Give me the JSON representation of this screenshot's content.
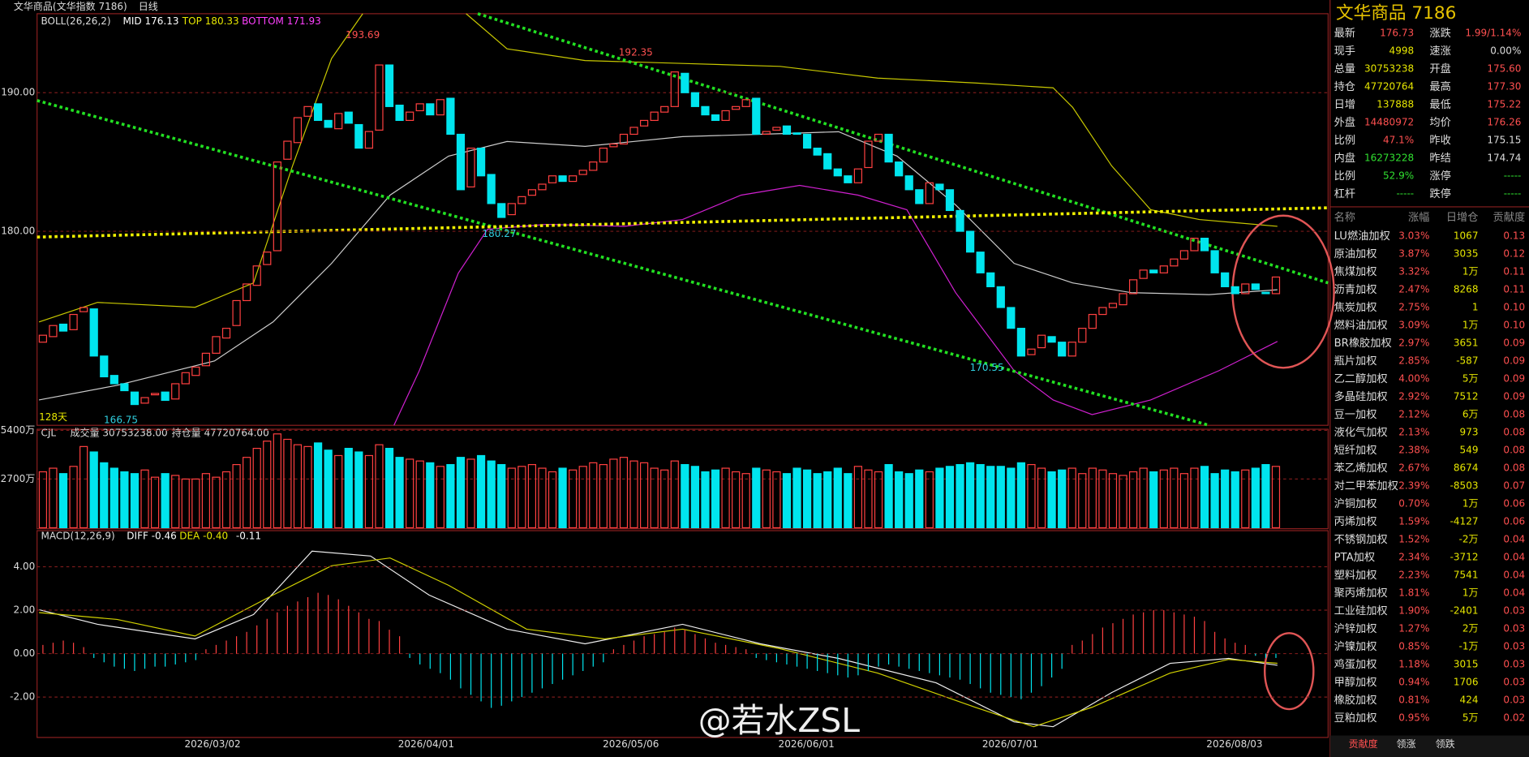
{
  "header": {
    "instrument": "文华商品(文华指数 7186)",
    "period": "日线"
  },
  "main_chart": {
    "legend": [
      "BOLL(26,26,2)",
      "MID 176.13",
      "TOP 180.33",
      "BOTTOM 171.93"
    ],
    "ylim": [
      166,
      195.7
    ],
    "yticks": [
      {
        "value": 190,
        "label": "190.00"
      },
      {
        "value": 180,
        "label": "180.00"
      }
    ],
    "annotations": [
      "193.69",
      "192.35",
      "180.27",
      "170.55",
      "166.75",
      "128天"
    ],
    "candles": [
      [
        172.0,
        172.5
      ],
      [
        172.4,
        173.2
      ],
      [
        173.3,
        172.8
      ],
      [
        172.9,
        174
      ],
      [
        174.2,
        174.5
      ],
      [
        174.4,
        171
      ],
      [
        171,
        169.5
      ],
      [
        169.6,
        169
      ],
      [
        169,
        168.5
      ],
      [
        168.4,
        167.5
      ],
      [
        167.6,
        168
      ],
      [
        168.2,
        168.3
      ],
      [
        168.4,
        167.8
      ],
      [
        167.9,
        169
      ],
      [
        169,
        169.8
      ],
      [
        169.6,
        170.2
      ],
      [
        170.3,
        171.2
      ],
      [
        171.2,
        172.4
      ],
      [
        172.3,
        173
      ],
      [
        173.2,
        175
      ],
      [
        175,
        176.2
      ],
      [
        176.1,
        177.5
      ],
      [
        177.6,
        178.5
      ],
      [
        178.6,
        185
      ],
      [
        185.2,
        186.5
      ],
      [
        186.4,
        188.2
      ],
      [
        188.3,
        189
      ],
      [
        189.2,
        188
      ],
      [
        188,
        187.5
      ],
      [
        187.4,
        188.5
      ],
      [
        188.6,
        187.8
      ],
      [
        187.7,
        186
      ],
      [
        186,
        187.2
      ],
      [
        187.3,
        192
      ],
      [
        192,
        189
      ],
      [
        189.1,
        188
      ],
      [
        188,
        188.6
      ],
      [
        188.7,
        189.2
      ],
      [
        189.2,
        188.4
      ],
      [
        188.4,
        189.5
      ],
      [
        189.6,
        187
      ],
      [
        187,
        183
      ],
      [
        183.2,
        186
      ],
      [
        186,
        184
      ],
      [
        184.1,
        182
      ],
      [
        182,
        181
      ],
      [
        181.2,
        182
      ],
      [
        182,
        182.5
      ],
      [
        182.6,
        183
      ],
      [
        183,
        183.4
      ],
      [
        183.5,
        184
      ],
      [
        184,
        183.6
      ],
      [
        183.6,
        184
      ],
      [
        184.1,
        184.4
      ],
      [
        184.4,
        185
      ],
      [
        185,
        186
      ],
      [
        186.1,
        186.3
      ],
      [
        186.3,
        187
      ],
      [
        187,
        187.5
      ],
      [
        187.6,
        188
      ],
      [
        188,
        188.6
      ],
      [
        188.6,
        189
      ],
      [
        189,
        191.5
      ],
      [
        191.4,
        190
      ],
      [
        190,
        189
      ],
      [
        189,
        188.4
      ],
      [
        188.4,
        188
      ],
      [
        188,
        188.7
      ],
      [
        188.8,
        189
      ],
      [
        189,
        189.5
      ],
      [
        189.6,
        187
      ],
      [
        187,
        187.2
      ],
      [
        187.3,
        187.5
      ],
      [
        187.6,
        187
      ],
      [
        187.1,
        187
      ],
      [
        187,
        186
      ],
      [
        186,
        185.5
      ],
      [
        185.6,
        184.5
      ],
      [
        184.5,
        184
      ],
      [
        184,
        183.5
      ],
      [
        183.5,
        184.5
      ],
      [
        184.6,
        186.5
      ],
      [
        186.5,
        187
      ],
      [
        187,
        185
      ],
      [
        185,
        184
      ],
      [
        184,
        183
      ],
      [
        183,
        182
      ],
      [
        182,
        183.5
      ],
      [
        183.4,
        183
      ],
      [
        183,
        181.5
      ],
      [
        181.5,
        180
      ],
      [
        180,
        178.5
      ],
      [
        178.5,
        177
      ],
      [
        177,
        176
      ],
      [
        176,
        174.5
      ],
      [
        174.5,
        173
      ],
      [
        173,
        171
      ],
      [
        171.1,
        171.5
      ],
      [
        171.6,
        172.5
      ],
      [
        172.4,
        172
      ],
      [
        172,
        171
      ],
      [
        171,
        172
      ],
      [
        172,
        173
      ],
      [
        173,
        174
      ],
      [
        174,
        174.5
      ],
      [
        174.5,
        174.8
      ],
      [
        174.7,
        175.5
      ],
      [
        175.5,
        176.5
      ],
      [
        176.6,
        177.2
      ],
      [
        177.2,
        177
      ],
      [
        177,
        177.5
      ],
      [
        177.5,
        178
      ],
      [
        178,
        178.6
      ],
      [
        178.6,
        179.5
      ],
      [
        179.5,
        178.6
      ],
      [
        178.6,
        177
      ],
      [
        177,
        176
      ],
      [
        176,
        175.5
      ],
      [
        175.5,
        176.2
      ],
      [
        176.2,
        175.8
      ],
      [
        175.6,
        175.5
      ],
      [
        175.5,
        176.7
      ]
    ]
  },
  "volume_chart": {
    "legend": [
      "CJL",
      "成交量 30753238.00",
      "持仓量 47720764.00"
    ],
    "ylim": [
      0,
      5460
    ],
    "yticks": [
      {
        "value": 5400,
        "label": "5400万"
      },
      {
        "value": 2700,
        "label": "2700万"
      }
    ],
    "values": [
      3100,
      3300,
      3000,
      3400,
      4500,
      4200,
      3600,
      3300,
      3100,
      3000,
      3200,
      2800,
      3000,
      2900,
      2700,
      2700,
      3000,
      2800,
      3100,
      3500,
      3900,
      4400,
      4800,
      5200,
      4900,
      4600,
      4500,
      4700,
      4300,
      4000,
      4400,
      4200,
      4000,
      4600,
      4400,
      3900,
      3800,
      3700,
      3600,
      3400,
      3500,
      3900,
      3800,
      4000,
      3700,
      3500,
      3300,
      3400,
      3500,
      3300,
      3100,
      3300,
      3200,
      3400,
      3600,
      3500,
      3800,
      3900,
      3700,
      3600,
      3300,
      3200,
      3700,
      3500,
      3400,
      3100,
      3200,
      3300,
      3100,
      3000,
      3300,
      3200,
      3100,
      3000,
      3300,
      3200,
      3000,
      3100,
      3300,
      3000,
      3400,
      3200,
      3100,
      3500,
      3100,
      3000,
      3200,
      3100,
      3300,
      3400,
      3500,
      3600,
      3500,
      3400,
      3400,
      3300,
      3600,
      3500,
      3300,
      3100,
      3200,
      3300,
      3000,
      3300,
      3200,
      3000,
      2900,
      3100,
      3300,
      3100,
      3200,
      3300,
      3000,
      3300,
      3400,
      3000,
      3200,
      3100,
      3200,
      3300,
      3500,
      3400,
      3300
    ]
  },
  "macd_chart": {
    "legend": [
      "MACD(12,26,9)",
      "DIFF -0.46",
      "DEA -0.40",
      "-0.11"
    ],
    "ylim": [
      -3.86,
      5.66
    ],
    "yticks": [
      {
        "value": 4,
        "label": "4.00"
      },
      {
        "value": 2,
        "label": "2.00"
      },
      {
        "value": 0,
        "label": "0.00"
      },
      {
        "value": -2,
        "label": "-2.00"
      }
    ],
    "values": [
      0.4,
      0.5,
      0.6,
      0.5,
      0.3,
      -0.2,
      -0.4,
      -0.6,
      -0.7,
      -0.8,
      -0.7,
      -0.6,
      -0.6,
      -0.5,
      -0.4,
      -0.3,
      0.2,
      0.4,
      0.6,
      0.8,
      1.0,
      1.3,
      1.6,
      1.9,
      2.2,
      2.4,
      2.6,
      2.8,
      2.7,
      2.5,
      2.2,
      1.9,
      1.6,
      1.5,
      1.1,
      0.8,
      -0.2,
      -0.5,
      -0.7,
      -0.9,
      -1.2,
      -1.6,
      -1.9,
      -2.2,
      -2.5,
      -2.4,
      -2.2,
      -2.0,
      -1.8,
      -1.6,
      -1.4,
      -1.2,
      -1.0,
      -0.8,
      -0.6,
      -0.4,
      0.2,
      0.4,
      0.6,
      0.8,
      0.9,
      1.0,
      1.2,
      1.1,
      0.9,
      0.7,
      0.5,
      0.4,
      0.3,
      0.2,
      -0.2,
      -0.3,
      -0.4,
      -0.5,
      -0.6,
      -0.7,
      -0.8,
      -0.9,
      -1.0,
      -1.1,
      -1.0,
      -0.8,
      -0.6,
      -0.5,
      -0.6,
      -0.7,
      -0.8,
      -0.9,
      -1.0,
      -1.1,
      -1.2,
      -1.4,
      -1.6,
      -1.8,
      -1.9,
      -2.0,
      -2.1,
      -1.8,
      -1.5,
      -1.1,
      -0.7,
      0.4,
      0.6,
      0.9,
      1.2,
      1.4,
      1.6,
      1.8,
      1.9,
      2.0,
      2.0,
      1.9,
      1.8,
      1.7,
      1.5,
      1.0,
      0.7,
      0.5,
      0.4,
      -0.1,
      -0.2,
      -0.2
    ]
  },
  "dates": [
    "2026/03/02",
    "2026/04/01",
    "2026/05/06",
    "2026/06/01",
    "2026/07/01",
    "2026/08/03"
  ],
  "watermark": "@若水ZSL",
  "quote_panel": {
    "title": "文华商品  7186",
    "rows": [
      [
        "最新",
        "176.73",
        "涨跌",
        "1.99/1.14%"
      ],
      [
        "现手",
        "4998",
        "速涨",
        "0.00%"
      ],
      [
        "总量",
        "30753238",
        "开盘",
        "175.60"
      ],
      [
        "持仓",
        "47720764",
        "最高",
        "177.30"
      ],
      [
        "日增",
        "137888",
        "最低",
        "175.22"
      ],
      [
        "外盘",
        "14480972",
        "均价",
        "176.26"
      ],
      [
        "比例",
        "47.1%",
        "昨收",
        "175.15"
      ],
      [
        "内盘",
        "16273228",
        "昨结",
        "174.74"
      ],
      [
        "比例",
        "52.9%",
        "涨停",
        "-----"
      ],
      [
        "杠杆",
        "-----",
        "跌停",
        "-----"
      ]
    ]
  },
  "contrib_table": {
    "header": [
      "名称",
      "涨幅",
      "日增仓",
      "贡献度"
    ],
    "rows": [
      [
        "LU燃油加权",
        "3.03%",
        "1067",
        "0.13"
      ],
      [
        "原油加权",
        "3.87%",
        "3035",
        "0.12"
      ],
      [
        "焦煤加权",
        "3.32%",
        "1万",
        "0.11"
      ],
      [
        "沥青加权",
        "2.47%",
        "8268",
        "0.11"
      ],
      [
        "焦炭加权",
        "2.75%",
        "1",
        "0.10"
      ],
      [
        "燃料油加权",
        "3.09%",
        "1万",
        "0.10"
      ],
      [
        "BR橡胶加权",
        "2.97%",
        "3651",
        "0.09"
      ],
      [
        "瓶片加权",
        "2.85%",
        "-587",
        "0.09"
      ],
      [
        "乙二醇加权",
        "4.00%",
        "5万",
        "0.09"
      ],
      [
        "多晶硅加权",
        "2.92%",
        "7512",
        "0.09"
      ],
      [
        "豆一加权",
        "2.12%",
        "6万",
        "0.08"
      ],
      [
        "液化气加权",
        "2.13%",
        "973",
        "0.08"
      ],
      [
        "短纤加权",
        "2.38%",
        "549",
        "0.08"
      ],
      [
        "苯乙烯加权",
        "2.67%",
        "8674",
        "0.08"
      ],
      [
        "对二甲苯加权",
        "2.39%",
        "-8503",
        "0.07"
      ],
      [
        "沪铜加权",
        "0.70%",
        "1万",
        "0.06"
      ],
      [
        "丙烯加权",
        "1.59%",
        "-4127",
        "0.06"
      ],
      [
        "不锈钢加权",
        "1.52%",
        "-2万",
        "0.04"
      ],
      [
        "PTA加权",
        "2.34%",
        "-3712",
        "0.04"
      ],
      [
        "塑料加权",
        "2.23%",
        "7541",
        "0.04"
      ],
      [
        "聚丙烯加权",
        "1.81%",
        "1万",
        "0.04"
      ],
      [
        "工业硅加权",
        "1.90%",
        "-2401",
        "0.03"
      ],
      [
        "沪锌加权",
        "1.27%",
        "2万",
        "0.03"
      ],
      [
        "沪镍加权",
        "0.85%",
        "-1万",
        "0.03"
      ],
      [
        "鸡蛋加权",
        "1.18%",
        "3015",
        "0.03"
      ],
      [
        "甲醇加权",
        "0.94%",
        "1706",
        "0.03"
      ],
      [
        "橡胶加权",
        "0.81%",
        "424",
        "0.03"
      ],
      [
        "豆粕加权",
        "0.95%",
        "5万",
        "0.02"
      ]
    ]
  },
  "tabs": [
    "贡献度",
    "领涨",
    "领跌"
  ]
}
